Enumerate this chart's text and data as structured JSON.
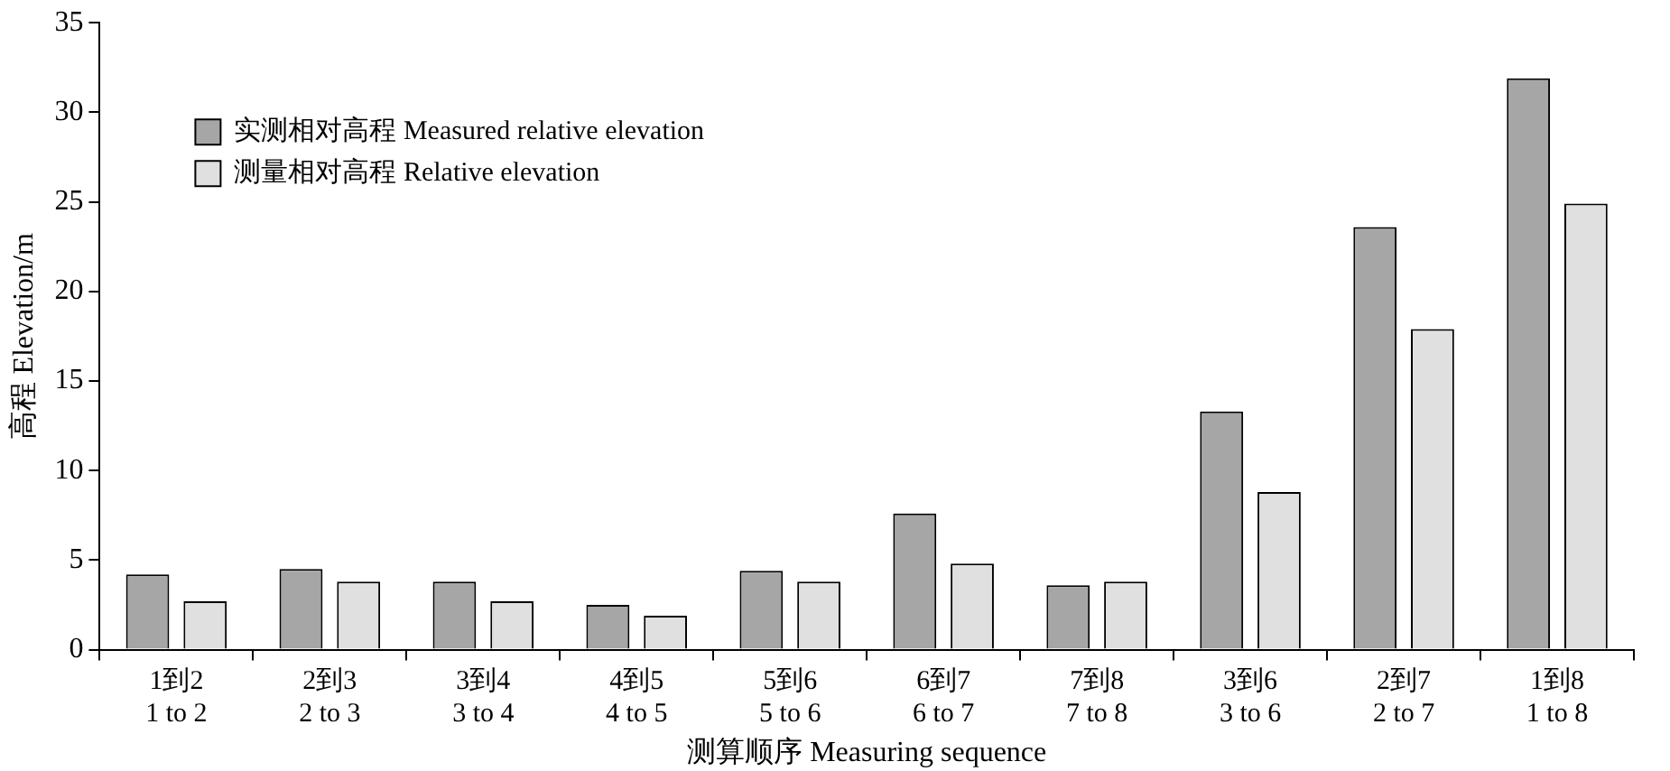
{
  "chart_data": {
    "type": "bar",
    "xlabel": "测算顺序 Measuring sequence",
    "ylabel": "高程 Elevation/m",
    "categories": [
      "1到2\n1 to 2",
      "2到3\n2 to 3",
      "3到4\n3 to 4",
      "4到5\n4 to 5",
      "5到6\n5 to 6",
      "6到7\n6 to 7",
      "7到8\n7 to 8",
      "3到6\n3 to 6",
      "2到7\n2 to 7",
      "1到8\n1 to 8"
    ],
    "series": [
      {
        "name": "实测相对高程 Measured relative elevation",
        "color": "#a6a6a6",
        "values": [
          4.2,
          4.5,
          3.8,
          2.5,
          4.4,
          7.6,
          3.6,
          13.3,
          23.6,
          31.9
        ]
      },
      {
        "name": "测量相对高程 Relative elevation",
        "color": "#e0e0e0",
        "values": [
          2.7,
          3.8,
          2.7,
          1.9,
          3.8,
          4.8,
          3.8,
          8.8,
          17.9,
          24.9
        ]
      }
    ],
    "ylim": [
      0,
      35
    ],
    "yticks": [
      0,
      5,
      10,
      15,
      20,
      25,
      30,
      35
    ],
    "grid": false,
    "legend": "top left"
  }
}
